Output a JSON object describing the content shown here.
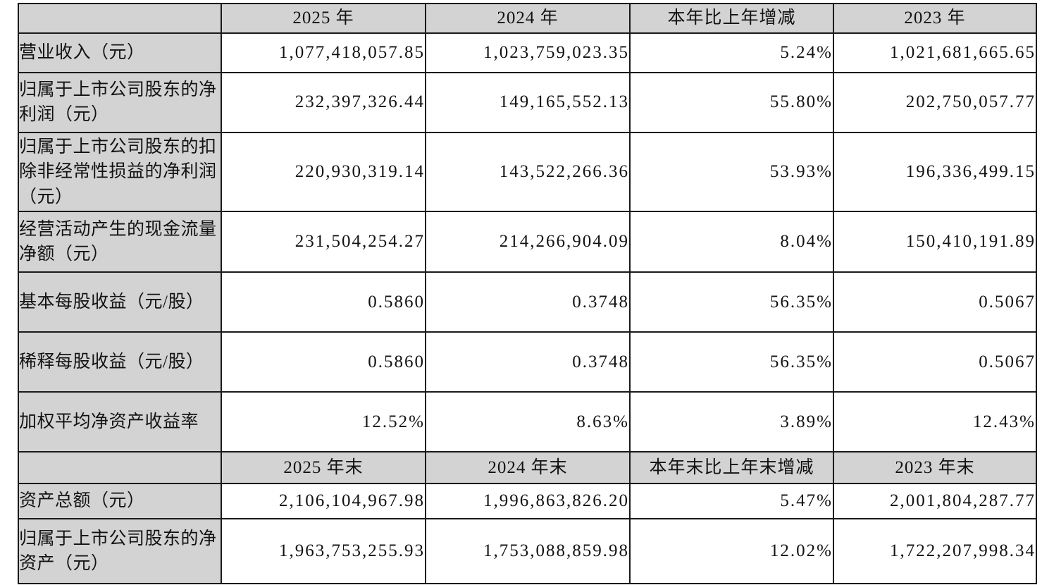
{
  "colors": {
    "header_fill": "#d3d3d3",
    "border": "#1a1a1a",
    "text": "#121212",
    "background": "#ffffff"
  },
  "table": {
    "header1": [
      "",
      "2025 年",
      "2024 年",
      "本年比上年增减",
      "2023 年"
    ],
    "header2": [
      "",
      "2025 年末",
      "2024 年末",
      "本年末比上年末增减",
      "2023 年末"
    ],
    "rows": [
      {
        "label": "营业收入（元）",
        "values": [
          "1,077,418,057.85",
          "1,023,759,023.35",
          "5.24%",
          "1,021,681,665.65"
        ]
      },
      {
        "label": "归属于上市公司股东的净利润（元）",
        "values": [
          "232,397,326.44",
          "149,165,552.13",
          "55.80%",
          "202,750,057.77"
        ]
      },
      {
        "label": "归属于上市公司股东的扣除非经常性损益的净利润（元）",
        "values": [
          "220,930,319.14",
          "143,522,266.36",
          "53.93%",
          "196,336,499.15"
        ]
      },
      {
        "label": "经营活动产生的现金流量净额（元）",
        "values": [
          "231,504,254.27",
          "214,266,904.09",
          "8.04%",
          "150,410,191.89"
        ]
      },
      {
        "label": "基本每股收益（元/股）",
        "values": [
          "0.5860",
          "0.3748",
          "56.35%",
          "0.5067"
        ]
      },
      {
        "label": "稀释每股收益（元/股）",
        "values": [
          "0.5860",
          "0.3748",
          "56.35%",
          "0.5067"
        ]
      },
      {
        "label": "加权平均净资产收益率",
        "values": [
          "12.52%",
          "8.63%",
          "3.89%",
          "12.43%"
        ]
      },
      {
        "label": "资产总额（元）",
        "values": [
          "2,106,104,967.98",
          "1,996,863,826.20",
          "5.47%",
          "2,001,804,287.77"
        ]
      },
      {
        "label": "归属于上市公司股东的净资产（元）",
        "values": [
          "1,963,753,255.93",
          "1,753,088,859.98",
          "12.02%",
          "1,722,207,998.34"
        ]
      }
    ]
  }
}
